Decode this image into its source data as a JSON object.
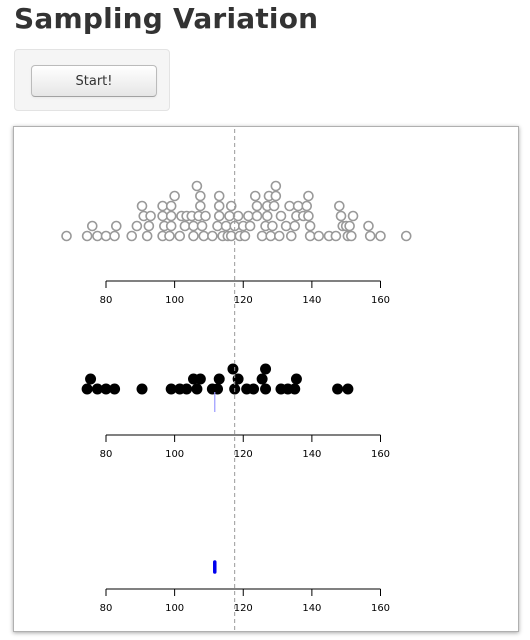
{
  "app": {
    "title": "Sampling Variation",
    "start_label": "Start!"
  },
  "chart_data": {
    "type": "scatter",
    "title": "",
    "reference_line": {
      "value": 117.5,
      "style": "dashed",
      "color": "#999999"
    },
    "axis": {
      "range": [
        80,
        160
      ],
      "ticks": [
        80,
        100,
        120,
        140,
        160
      ]
    },
    "panels": [
      {
        "name": "population",
        "marker": "open-circle",
        "color": "#999999",
        "points": [
          {
            "x": 68.5,
            "y": 1
          },
          {
            "x": 74.5,
            "y": 1
          },
          {
            "x": 76.0,
            "y": 2
          },
          {
            "x": 77.5,
            "y": 1
          },
          {
            "x": 80.0,
            "y": 1
          },
          {
            "x": 82.5,
            "y": 1
          },
          {
            "x": 83.0,
            "y": 2
          },
          {
            "x": 87.5,
            "y": 1
          },
          {
            "x": 89.0,
            "y": 2
          },
          {
            "x": 90.5,
            "y": 4
          },
          {
            "x": 91.0,
            "y": 3
          },
          {
            "x": 92.0,
            "y": 1
          },
          {
            "x": 92.5,
            "y": 2
          },
          {
            "x": 93.0,
            "y": 3
          },
          {
            "x": 96.5,
            "y": 1
          },
          {
            "x": 97.0,
            "y": 2
          },
          {
            "x": 96.5,
            "y": 3
          },
          {
            "x": 96.5,
            "y": 4
          },
          {
            "x": 98.5,
            "y": 1
          },
          {
            "x": 99.0,
            "y": 2
          },
          {
            "x": 99.0,
            "y": 3
          },
          {
            "x": 99.0,
            "y": 4
          },
          {
            "x": 100.0,
            "y": 5
          },
          {
            "x": 101.5,
            "y": 1
          },
          {
            "x": 102.0,
            "y": 3
          },
          {
            "x": 103.0,
            "y": 2
          },
          {
            "x": 103.5,
            "y": 3
          },
          {
            "x": 105.5,
            "y": 1
          },
          {
            "x": 105.5,
            "y": 2
          },
          {
            "x": 105.0,
            "y": 3
          },
          {
            "x": 106.5,
            "y": 6
          },
          {
            "x": 107.0,
            "y": 3
          },
          {
            "x": 107.5,
            "y": 4
          },
          {
            "x": 107.5,
            "y": 5
          },
          {
            "x": 108.0,
            "y": 2
          },
          {
            "x": 108.5,
            "y": 1
          },
          {
            "x": 109.0,
            "y": 3
          },
          {
            "x": 111.0,
            "y": 1
          },
          {
            "x": 112.5,
            "y": 2
          },
          {
            "x": 113.0,
            "y": 3
          },
          {
            "x": 113.0,
            "y": 4
          },
          {
            "x": 113.0,
            "y": 5
          },
          {
            "x": 114.0,
            "y": 1
          },
          {
            "x": 115.0,
            "y": 2
          },
          {
            "x": 115.5,
            "y": 1
          },
          {
            "x": 116.0,
            "y": 3
          },
          {
            "x": 116.5,
            "y": 4
          },
          {
            "x": 116.5,
            "y": 1
          },
          {
            "x": 117.5,
            "y": 2
          },
          {
            "x": 118.5,
            "y": 3
          },
          {
            "x": 119.0,
            "y": 1
          },
          {
            "x": 120.0,
            "y": 2
          },
          {
            "x": 120.5,
            "y": 1
          },
          {
            "x": 121.5,
            "y": 3
          },
          {
            "x": 122.0,
            "y": 2
          },
          {
            "x": 123.5,
            "y": 5
          },
          {
            "x": 124.0,
            "y": 4
          },
          {
            "x": 124.0,
            "y": 3
          },
          {
            "x": 125.5,
            "y": 1
          },
          {
            "x": 126.5,
            "y": 2
          },
          {
            "x": 127.0,
            "y": 3
          },
          {
            "x": 127.0,
            "y": 4
          },
          {
            "x": 127.5,
            "y": 5
          },
          {
            "x": 128.0,
            "y": 1
          },
          {
            "x": 128.5,
            "y": 2
          },
          {
            "x": 129.0,
            "y": 4
          },
          {
            "x": 129.5,
            "y": 5
          },
          {
            "x": 129.5,
            "y": 6
          },
          {
            "x": 130.5,
            "y": 1
          },
          {
            "x": 131.0,
            "y": 3
          },
          {
            "x": 132.5,
            "y": 2
          },
          {
            "x": 133.5,
            "y": 4
          },
          {
            "x": 134.0,
            "y": 1
          },
          {
            "x": 135.0,
            "y": 2
          },
          {
            "x": 135.5,
            "y": 3
          },
          {
            "x": 136.0,
            "y": 4
          },
          {
            "x": 137.5,
            "y": 3
          },
          {
            "x": 138.5,
            "y": 4
          },
          {
            "x": 139.0,
            "y": 5
          },
          {
            "x": 139.5,
            "y": 1
          },
          {
            "x": 139.5,
            "y": 2
          },
          {
            "x": 139.0,
            "y": 3
          },
          {
            "x": 142.0,
            "y": 1
          },
          {
            "x": 145.0,
            "y": 1
          },
          {
            "x": 147.0,
            "y": 1
          },
          {
            "x": 148.0,
            "y": 4
          },
          {
            "x": 148.5,
            "y": 3
          },
          {
            "x": 149.0,
            "y": 2
          },
          {
            "x": 150.0,
            "y": 2
          },
          {
            "x": 150.5,
            "y": 1
          },
          {
            "x": 151.0,
            "y": 2
          },
          {
            "x": 151.5,
            "y": 1
          },
          {
            "x": 152.0,
            "y": 3
          },
          {
            "x": 156.5,
            "y": 2
          },
          {
            "x": 157.0,
            "y": 1
          },
          {
            "x": 160.0,
            "y": 1
          },
          {
            "x": 167.5,
            "y": 1
          }
        ]
      },
      {
        "name": "sample",
        "marker": "filled-circle",
        "color": "#000000",
        "sample_mean": 111.7,
        "mean_color": "#9999ff",
        "points": [
          {
            "x": 74.5,
            "y": 1
          },
          {
            "x": 75.5,
            "y": 2
          },
          {
            "x": 77.5,
            "y": 1
          },
          {
            "x": 80.0,
            "y": 1
          },
          {
            "x": 82.5,
            "y": 1
          },
          {
            "x": 90.5,
            "y": 1
          },
          {
            "x": 99.0,
            "y": 1
          },
          {
            "x": 101.5,
            "y": 1
          },
          {
            "x": 103.5,
            "y": 1
          },
          {
            "x": 105.5,
            "y": 2
          },
          {
            "x": 106.5,
            "y": 1
          },
          {
            "x": 107.5,
            "y": 2
          },
          {
            "x": 111.0,
            "y": 1
          },
          {
            "x": 112.5,
            "y": 1
          },
          {
            "x": 113.0,
            "y": 2
          },
          {
            "x": 117.0,
            "y": 3
          },
          {
            "x": 117.5,
            "y": 1
          },
          {
            "x": 118.5,
            "y": 2
          },
          {
            "x": 121.0,
            "y": 1
          },
          {
            "x": 123.0,
            "y": 1
          },
          {
            "x": 125.5,
            "y": 2
          },
          {
            "x": 126.5,
            "y": 1
          },
          {
            "x": 126.5,
            "y": 3
          },
          {
            "x": 131.0,
            "y": 1
          },
          {
            "x": 133.0,
            "y": 1
          },
          {
            "x": 135.0,
            "y": 1
          },
          {
            "x": 135.5,
            "y": 2
          },
          {
            "x": 147.5,
            "y": 1
          },
          {
            "x": 150.5,
            "y": 1
          }
        ]
      },
      {
        "name": "sample-means",
        "marker": "mean-tick",
        "color": "#0000ee",
        "points": [
          {
            "x": 111.7,
            "y": 1
          }
        ]
      }
    ]
  }
}
